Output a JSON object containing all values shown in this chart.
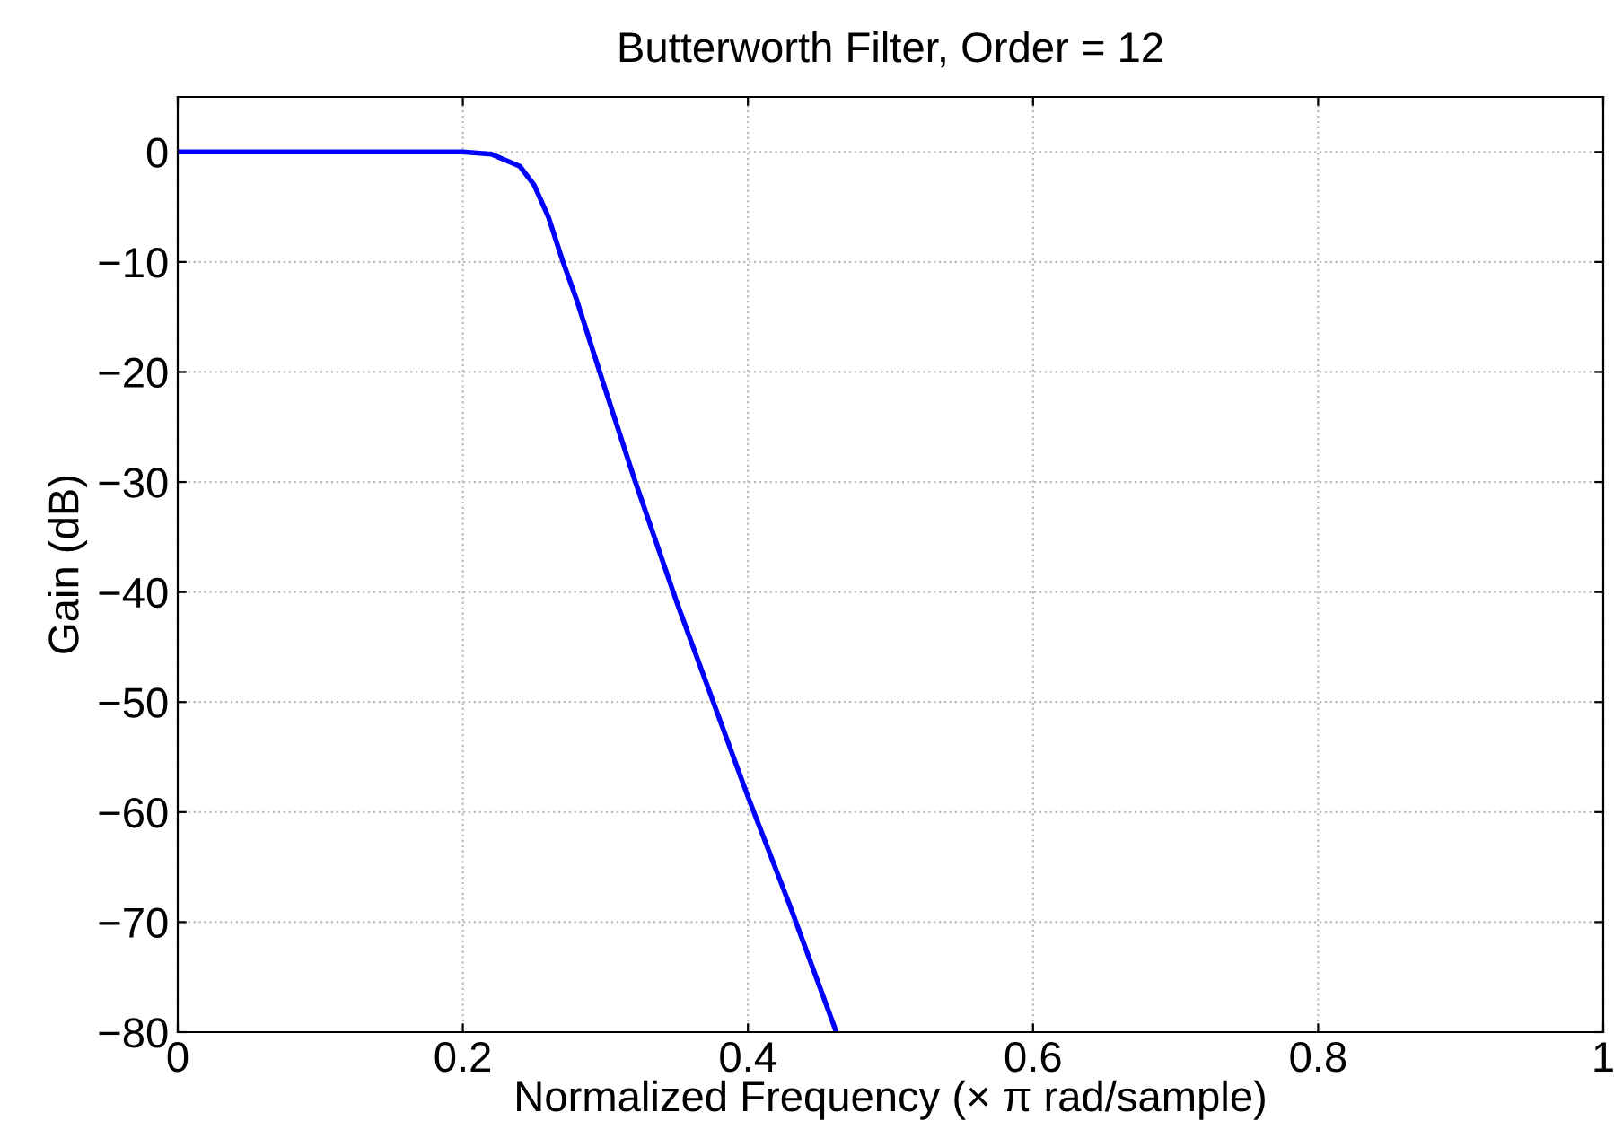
{
  "chart_data": {
    "type": "line",
    "title": "Butterworth Filter, Order = 12",
    "xlabel": "Normalized Frequency (× π rad/sample)",
    "ylabel": "Gain (dB)",
    "x": [
      0,
      0.1,
      0.2,
      0.22,
      0.24,
      0.25,
      0.26,
      0.27,
      0.28,
      0.3,
      0.32,
      0.35,
      0.4,
      0.43,
      0.462
    ],
    "series": [
      {
        "color": "#0000ff",
        "values": [
          0,
          0,
          0,
          -0.2,
          -1.3,
          -3,
          -5.9,
          -9.9,
          -13.5,
          -21.6,
          -29.6,
          -40.9,
          -58.6,
          -68.7,
          -80
        ]
      }
    ],
    "xlim": [
      0,
      1
    ],
    "ylim": [
      -80,
      5
    ],
    "xticks": [
      0,
      0.2,
      0.4,
      0.6,
      0.8,
      1
    ],
    "yticks": [
      0,
      {
        "value": -10,
        "label": "−10"
      },
      {
        "value": -20,
        "label": "−20"
      },
      {
        "value": -30,
        "label": "−30"
      },
      {
        "value": -40,
        "label": "−40"
      },
      {
        "value": -50,
        "label": "−50"
      },
      {
        "value": -60,
        "label": "−60"
      },
      {
        "value": -70,
        "label": "−70"
      },
      {
        "value": -80,
        "label": "−80"
      }
    ],
    "grid": true,
    "line_style": "solid",
    "marker": "none"
  }
}
